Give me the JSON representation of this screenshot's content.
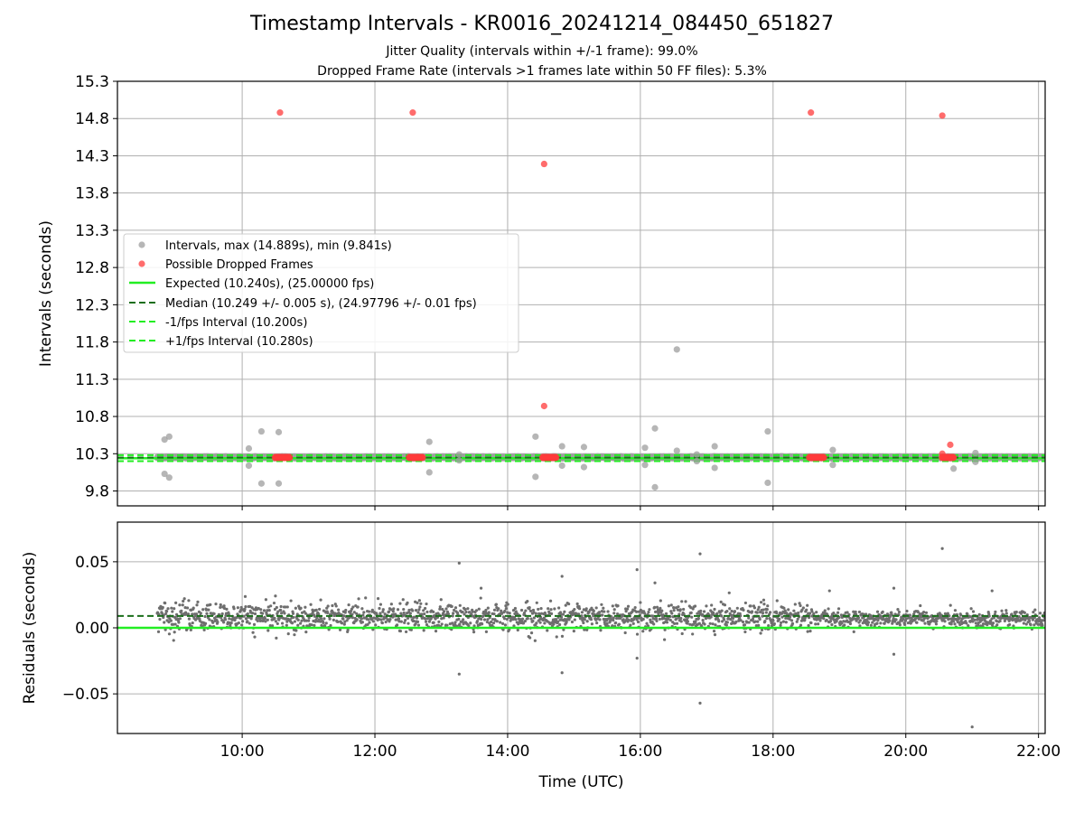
{
  "header": {
    "title": "Timestamp Intervals - KR0016_20241214_084450_651827",
    "subtitle_1": "Jitter Quality (intervals within +/-1 frame): 99.0%",
    "subtitle_2": "Dropped Frame Rate (intervals >1 frames late within 50 FF files): 5.3%"
  },
  "colors": {
    "intervals": "#9e9e9e",
    "dropped": "#ff3b3b",
    "expected": "#22ee22",
    "median": "#1a6e1a",
    "fps_bounds": "#22ee22",
    "residuals": "#6e6e6e",
    "grid": "#b0b0b0"
  },
  "chart_data": [
    {
      "type": "scatter",
      "xlabel": "",
      "ylabel": "Intervals (seconds)",
      "x_units": "hours UTC",
      "xlim": [
        8.12,
        22.1
      ],
      "ylim": [
        9.6,
        15.3
      ],
      "yticks": [
        "9.8",
        "10.3",
        "10.8",
        "11.3",
        "11.8",
        "12.3",
        "12.8",
        "13.3",
        "13.8",
        "14.3",
        "14.8",
        "15.3"
      ],
      "ytick_values": [
        9.8,
        10.3,
        10.8,
        11.3,
        11.8,
        12.3,
        12.8,
        13.3,
        13.8,
        14.3,
        14.8,
        15.3
      ],
      "grid": true,
      "legend": {
        "placement": "center-left",
        "entries": [
          "Intervals, max (14.889s), min (9.841s)",
          "Possible Dropped Frames",
          "Expected (10.240s), (25.00000 fps)",
          "Median (10.249 +/- 0.005 s), (24.97796 +/- 0.01 fps)",
          "-1/fps Interval (10.200s)",
          "+1/fps Interval (10.280s)"
        ]
      },
      "lines": {
        "expected": 10.24,
        "median": 10.249,
        "minus_1_fps": 10.2,
        "plus_1_fps": 10.28
      },
      "interval_outliers": [
        [
          8.83,
          10.49
        ],
        [
          8.9,
          10.53
        ],
        [
          8.83,
          10.03
        ],
        [
          8.9,
          9.98
        ],
        [
          10.1,
          10.37
        ],
        [
          10.1,
          10.14
        ],
        [
          10.29,
          10.6
        ],
        [
          10.29,
          9.9
        ],
        [
          10.55,
          10.59
        ],
        [
          10.55,
          9.9
        ],
        [
          12.82,
          10.46
        ],
        [
          12.82,
          10.05
        ],
        [
          13.27,
          10.29
        ],
        [
          13.27,
          10.21
        ],
        [
          14.42,
          10.53
        ],
        [
          14.42,
          9.99
        ],
        [
          14.82,
          10.4
        ],
        [
          14.82,
          10.14
        ],
        [
          15.15,
          10.39
        ],
        [
          15.15,
          10.12
        ],
        [
          16.07,
          10.38
        ],
        [
          16.07,
          10.15
        ],
        [
          16.22,
          10.64
        ],
        [
          16.22,
          9.85
        ],
        [
          16.55,
          11.7
        ],
        [
          16.55,
          10.34
        ],
        [
          16.85,
          10.29
        ],
        [
          16.85,
          10.2
        ],
        [
          17.12,
          10.4
        ],
        [
          17.12,
          10.11
        ],
        [
          17.92,
          10.6
        ],
        [
          17.92,
          9.91
        ],
        [
          18.9,
          10.35
        ],
        [
          18.9,
          10.15
        ],
        [
          20.72,
          10.1
        ],
        [
          21.05,
          10.31
        ],
        [
          21.05,
          10.19
        ]
      ],
      "interval_band": {
        "x_start": 8.72,
        "x_end": 22.1,
        "y": 10.25
      },
      "dropped_frames": [
        [
          10.57,
          14.88
        ],
        [
          12.57,
          14.88
        ],
        [
          14.55,
          14.19
        ],
        [
          14.55,
          10.94
        ],
        [
          18.57,
          14.88
        ],
        [
          20.55,
          14.84
        ],
        [
          20.67,
          10.42
        ],
        [
          20.55,
          10.3
        ]
      ],
      "dropped_clusters": [
        [
          10.5,
          10.72,
          10.25
        ],
        [
          12.52,
          12.73,
          10.25
        ],
        [
          14.53,
          14.74,
          10.25
        ],
        [
          18.55,
          18.77,
          10.25
        ],
        [
          20.55,
          20.72,
          10.25
        ]
      ]
    },
    {
      "type": "scatter",
      "xlabel": "Time (UTC)",
      "ylabel": "Residuals (seconds)",
      "x_units": "hours UTC",
      "xlim": [
        8.12,
        22.1
      ],
      "ylim": [
        -0.08,
        0.08
      ],
      "yticks": [
        "−0.05",
        "0.00",
        "0.05"
      ],
      "ytick_values": [
        -0.05,
        0.0,
        0.05
      ],
      "xticks": [
        "10:00",
        "12:00",
        "14:00",
        "16:00",
        "18:00",
        "20:00",
        "22:00"
      ],
      "xtick_values": [
        10,
        12,
        14,
        16,
        18,
        20,
        22
      ],
      "grid": true,
      "lines": {
        "expected": 0.0,
        "median": 0.009
      },
      "cloud": {
        "x_start": 8.72,
        "x_end": 22.1,
        "center": 0.008,
        "spread": 0.007
      },
      "residual_outliers": [
        [
          13.27,
          0.049
        ],
        [
          13.27,
          -0.035
        ],
        [
          14.82,
          0.039
        ],
        [
          14.82,
          -0.034
        ],
        [
          15.95,
          0.044
        ],
        [
          15.95,
          -0.023
        ],
        [
          16.9,
          0.056
        ],
        [
          16.9,
          -0.057
        ],
        [
          19.82,
          0.03
        ],
        [
          19.82,
          -0.02
        ],
        [
          20.55,
          0.06
        ],
        [
          21.0,
          -0.075
        ],
        [
          18.85,
          0.028
        ],
        [
          21.3,
          0.028
        ],
        [
          13.6,
          0.03
        ],
        [
          16.22,
          0.034
        ]
      ]
    }
  ]
}
